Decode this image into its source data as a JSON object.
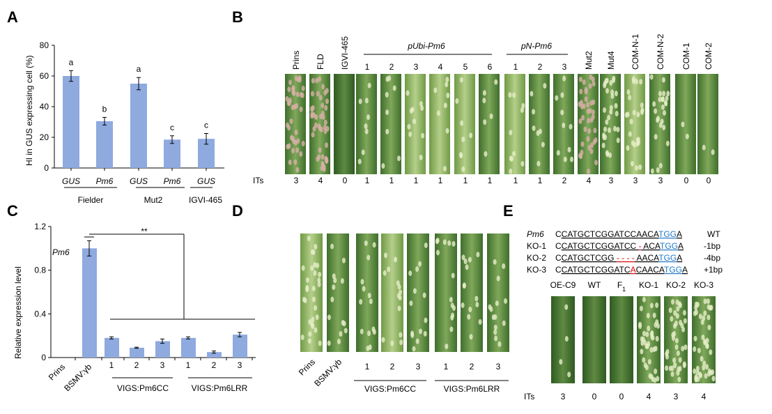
{
  "panels": {
    "a": "A",
    "b": "B",
    "c": "C",
    "d": "D",
    "e": "E"
  },
  "colors": {
    "bar": "#8eaadf",
    "blue": "#1f78c8",
    "red": "#e00000"
  },
  "chart_data": [
    {
      "type": "bar",
      "panel": "A",
      "ylabel": "HI in GUS expressing cell (%)",
      "ylim": [
        0,
        80
      ],
      "yticks": [
        0,
        20,
        40,
        60,
        80
      ],
      "categories": [
        "GUS",
        "Pm6",
        "GUS",
        "Pm6",
        "GUS"
      ],
      "values": [
        60,
        30.5,
        55,
        18.5,
        19
      ],
      "errors": [
        3.5,
        2.5,
        4,
        2.5,
        3.5
      ],
      "letters": [
        "a",
        "b",
        "a",
        "c",
        "c"
      ],
      "groups": [
        "Fielder",
        "Mut2",
        "IGVI-465"
      ]
    },
    {
      "type": "bar",
      "panel": "C",
      "ylabel": "Relative expression level",
      "ylim": [
        0,
        1.2
      ],
      "yticks": [
        "0",
        "0.4",
        "0.8",
        "1.2"
      ],
      "annotation": "Pm6",
      "significance": "**",
      "categories": [
        "Prins",
        "BSMV:γb",
        "1",
        "2",
        "3",
        "1",
        "2",
        "3"
      ],
      "values": [
        0,
        1.0,
        0.18,
        0.09,
        0.15,
        0.18,
        0.05,
        0.21
      ],
      "errors": [
        0,
        0.07,
        0.01,
        0.005,
        0.02,
        0.01,
        0.01,
        0.02
      ],
      "groups": [
        "VIGS:Pm6CC",
        "VIGS:Pm6LRR"
      ]
    }
  ],
  "panel_b": {
    "labels": [
      "Prins",
      "FLD",
      "IGVI-465",
      "1",
      "2",
      "3",
      "4",
      "5",
      "6",
      "1",
      "2",
      "3",
      "Mut2",
      "Mut4",
      "COM-N-1",
      "COM-N-2",
      "COM-1",
      "COM-2"
    ],
    "groups": [
      "pUbi-Pm6",
      "pN-Pm6"
    ],
    "its_label": "ITs",
    "its": [
      "3",
      "4",
      "0",
      "1",
      "1",
      "1",
      "1",
      "1",
      "1",
      "1",
      "1",
      "2",
      "4",
      "3",
      "3",
      "3",
      "0",
      "0"
    ]
  },
  "panel_d": {
    "labels": [
      "Prins",
      "BSMV:γb",
      "1",
      "2",
      "3",
      "1",
      "2",
      "3"
    ],
    "groups": [
      "VIGS:Pm6CC",
      "VIGS:Pm6LRR"
    ]
  },
  "panel_e": {
    "rows": [
      {
        "name": "Pm6",
        "seq": [
          [
            "C",
            "k"
          ],
          [
            "CATGCTCGGATCCAACA",
            "k"
          ],
          [
            "TGG",
            "b"
          ],
          [
            "A",
            "k"
          ]
        ],
        "note": "WT"
      },
      {
        "name": "KO-1",
        "seq": [
          [
            "C",
            "k"
          ],
          [
            "CATGCTCGGATCC ",
            "k"
          ],
          [
            "-",
            "r"
          ],
          [
            " ACA",
            "k"
          ],
          [
            "TGG",
            "b"
          ],
          [
            "A",
            "k"
          ]
        ],
        "note": "-1bp"
      },
      {
        "name": "KO-2",
        "seq": [
          [
            "C",
            "k"
          ],
          [
            "CATGCTCGG ",
            "k"
          ],
          [
            "- - - -",
            "r"
          ],
          [
            " AACA",
            "k"
          ],
          [
            "TGG",
            "b"
          ],
          [
            "A",
            "k"
          ]
        ],
        "note": "-4bp"
      },
      {
        "name": "KO-3",
        "seq": [
          [
            "C",
            "k"
          ],
          [
            "CATGCTCGGATC",
            "k"
          ],
          [
            "A",
            "r"
          ],
          [
            "CAACA",
            "k"
          ],
          [
            "TGG",
            "b"
          ],
          [
            "A",
            "k"
          ]
        ],
        "note": "+1bp"
      }
    ],
    "labels": [
      "OE-C9",
      "WT",
      "F1",
      "KO-1",
      "KO-2",
      "KO-3"
    ],
    "its_label": "ITs",
    "its": [
      "3",
      "0",
      "0",
      "4",
      "3",
      "4"
    ]
  }
}
